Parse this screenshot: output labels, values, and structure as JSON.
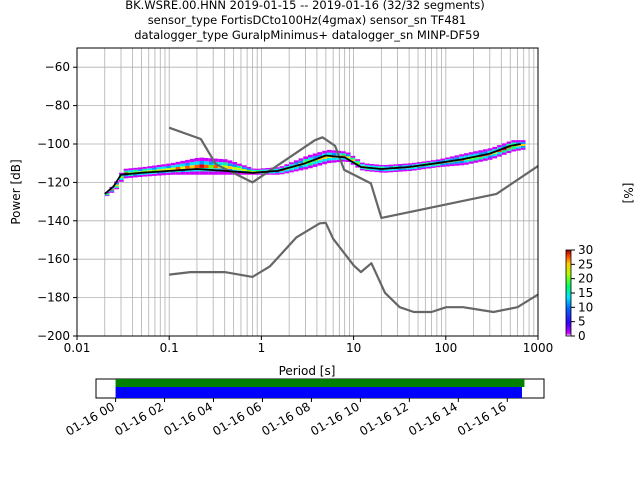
{
  "title_lines": [
    "BK.WSRE.00.HNN   2019-01-15 -- 2019-01-16  (32/32 segments)",
    "sensor_type FortisDCto100Hz(4gmax) sensor_sn TF481",
    "datalogger_type GuralpMinimus+ datalogger_sn MINP-DF59"
  ],
  "chart_data": [
    {
      "type": "heatmap",
      "xlabel": "Period [s]",
      "ylabel": "Power [dB]",
      "x_scale": "log",
      "xlim": [
        0.01,
        1000
      ],
      "ylim": [
        -200,
        -50
      ],
      "x_ticks": [
        {
          "value": 0.01,
          "label": "0.01"
        },
        {
          "value": 0.1,
          "label": "0.1"
        },
        {
          "value": 1,
          "label": "1"
        },
        {
          "value": 10,
          "label": "10"
        },
        {
          "value": 100,
          "label": "100"
        },
        {
          "value": 1000,
          "label": "1000"
        }
      ],
      "y_ticks": [
        -200,
        -180,
        -160,
        -140,
        -120,
        -100,
        -80,
        -60
      ],
      "grid": "on (x minor lines)",
      "colorbar": {
        "label": "[%]",
        "range": [
          0,
          30
        ],
        "ticks": [
          0,
          5,
          10,
          15,
          20,
          25,
          30
        ]
      },
      "series": [
        {
          "name": "",
          "role": "noise model upper",
          "color": "#666666",
          "x": [
            0.1,
            0.22,
            0.32,
            0.8,
            3.8,
            4.6,
            6.3,
            7.9,
            15.4,
            20,
            354.8,
            1000
          ],
          "y": [
            -91.5,
            -97.4,
            -110.5,
            -120,
            -98,
            -96.5,
            -101,
            -113.5,
            -120.5,
            -138.5,
            -126,
            -111.5
          ]
        },
        {
          "name": "",
          "role": "noise model lower",
          "color": "#666666",
          "x": [
            0.1,
            0.17,
            0.4,
            0.8,
            1.24,
            2.4,
            4.3,
            5,
            6,
            10,
            12,
            15.6,
            21.9,
            31.6,
            45,
            70,
            101,
            154,
            328,
            600,
            1000
          ],
          "y": [
            -168,
            -166.7,
            -166.7,
            -169.2,
            -163.7,
            -148.6,
            -141.3,
            -141.1,
            -149.3,
            -163.2,
            -166.7,
            -162.1,
            -177.5,
            -185,
            -187.5,
            -187.5,
            -185,
            -185,
            -187.5,
            -185,
            -178.4
          ]
        },
        {
          "name": "",
          "role": "mode",
          "color": "#000000",
          "x": [
            0.02,
            0.025,
            0.03,
            0.05,
            0.1,
            0.2,
            0.4,
            0.8,
            1.5,
            3,
            5,
            8,
            12,
            20,
            40,
            80,
            150,
            300,
            500,
            650
          ],
          "y": [
            -126,
            -122,
            -116,
            -115,
            -114,
            -113,
            -114,
            -115,
            -114,
            -110,
            -106,
            -107,
            -112,
            -113,
            -112,
            -110,
            -108,
            -105,
            -101,
            -100
          ]
        }
      ],
      "density_band": {
        "x": [
          0.02,
          0.025,
          0.03,
          0.05,
          0.1,
          0.2,
          0.4,
          0.8,
          1.5,
          3,
          5,
          8,
          12,
          20,
          40,
          80,
          150,
          300,
          500,
          650
        ],
        "y_low": [
          -127,
          -124,
          -118,
          -117,
          -116,
          -116,
          -116,
          -116,
          -116,
          -113,
          -110,
          -109,
          -114,
          -115,
          -114,
          -112,
          -111,
          -108,
          -104,
          -103
        ],
        "y_high": [
          -125,
          -120,
          -113,
          -112,
          -110,
          -107,
          -108,
          -113,
          -112,
          -106,
          -103,
          -104,
          -110,
          -111,
          -110,
          -108,
          -105,
          -102,
          -98,
          -98
        ]
      }
    },
    {
      "type": "bar",
      "role": "data availability timeline",
      "x_tick_labels": [
        "01-16 00",
        "01-16 02",
        "01-16 04",
        "01-16 06",
        "01-16 08",
        "01-16 10",
        "01-16 12",
        "01-16 14",
        "01-16 16"
      ],
      "xlim_hours": [
        -0.8,
        17.5
      ],
      "bars": [
        {
          "color": "#008000",
          "start_hours": 0,
          "end_hours": 16.7
        },
        {
          "color": "#0000ff",
          "start_hours": 0,
          "end_hours": 16.6
        }
      ]
    }
  ]
}
